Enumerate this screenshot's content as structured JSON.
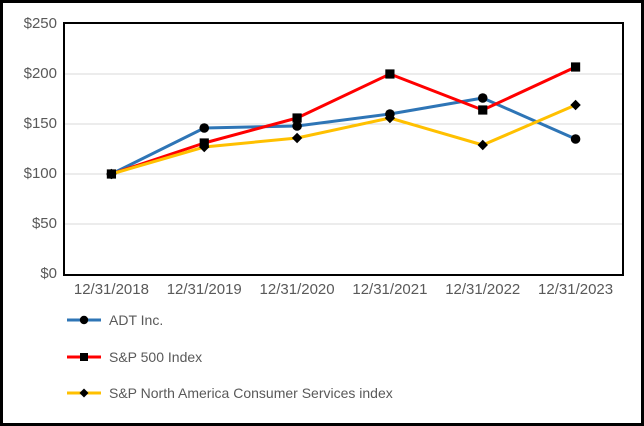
{
  "chart_data": {
    "type": "line",
    "x": [
      "12/31/2018",
      "12/31/2019",
      "12/31/2020",
      "12/31/2021",
      "12/31/2022",
      "12/31/2023"
    ],
    "series": [
      {
        "name": "ADT Inc.",
        "color": "#2E75B6",
        "marker": "circle",
        "values": [
          100,
          146,
          148,
          160,
          176,
          135
        ]
      },
      {
        "name": "S&P 500 Index",
        "color": "#FF0000",
        "marker": "square",
        "values": [
          100,
          131,
          156,
          200,
          164,
          207
        ]
      },
      {
        "name": "S&P North America Consumer Services index",
        "color": "#FFC000",
        "marker": "diamond",
        "values": [
          100,
          127,
          136,
          156,
          129,
          169
        ]
      }
    ],
    "y_ticks": [
      "$0",
      "$50",
      "$100",
      "$150",
      "$200",
      "$250"
    ],
    "ylim": [
      0,
      250
    ],
    "y_tick_step": 50,
    "grid": true,
    "gridline_color": "#D9D9D9",
    "plot_border_color": "#000000",
    "marker_color": "#000000",
    "legend_position": "bottom-left",
    "title": ""
  }
}
